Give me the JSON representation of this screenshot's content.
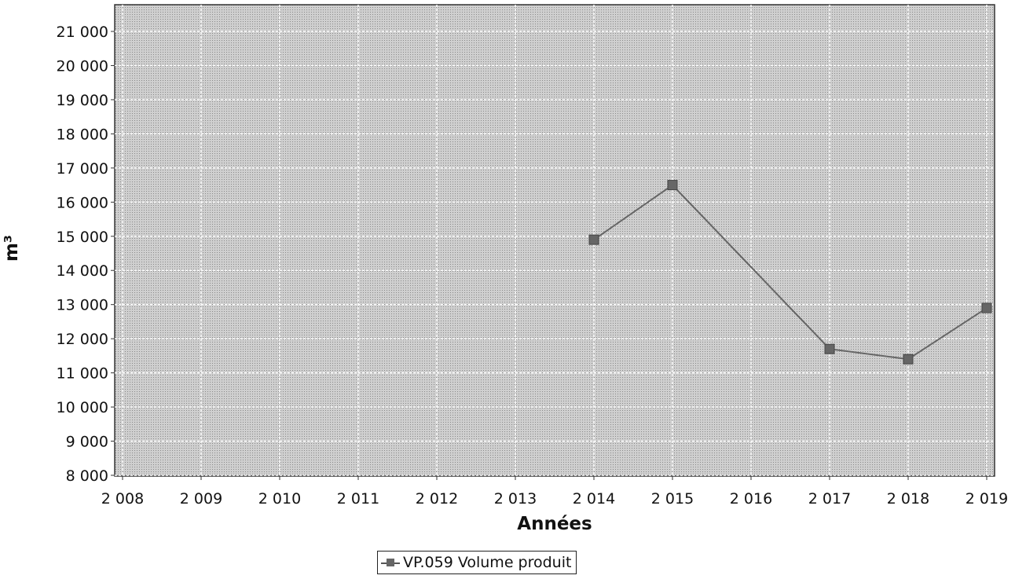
{
  "chart_data": {
    "type": "line",
    "title": "",
    "xlabel": "Années",
    "ylabel": "m³",
    "x_ticks": [
      "2 008",
      "2 009",
      "2 010",
      "2 011",
      "2 012",
      "2 013",
      "2 014",
      "2 015",
      "2 016",
      "2 017",
      "2 018",
      "2 019"
    ],
    "y_ticks": [
      "8 000",
      "9 000",
      "10 000",
      "11 000",
      "12 000",
      "13 000",
      "14 000",
      "15 000",
      "16 000",
      "17 000",
      "18 000",
      "19 000",
      "20 000",
      "21 000"
    ],
    "xlim": [
      2008,
      2019
    ],
    "ylim": [
      8000,
      21000
    ],
    "grid": true,
    "legend_position": "bottom-center",
    "series": [
      {
        "name": "VP.059 Volume produit",
        "x": [
          2014,
          2015,
          2017,
          2018,
          2019
        ],
        "y": [
          14900,
          16500,
          11700,
          11400,
          12900
        ]
      }
    ],
    "colors": {
      "plot_background": "#c9c9c9",
      "line": "#666666",
      "marker": "#666666",
      "grid": "#ffffff"
    }
  }
}
